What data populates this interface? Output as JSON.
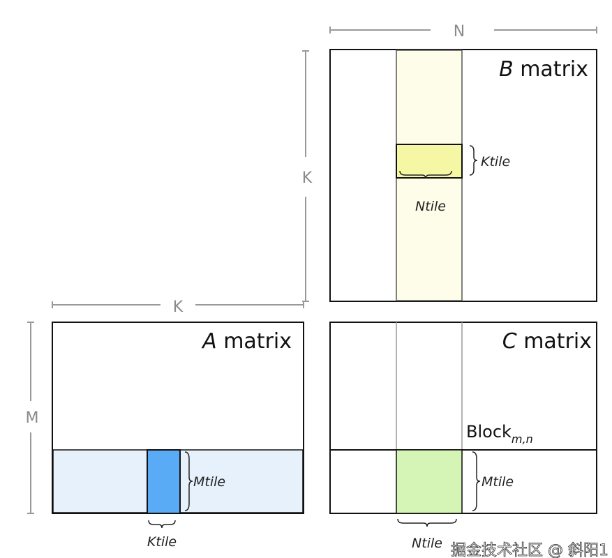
{
  "dimensions": {
    "n": "N",
    "k_vertical": "K",
    "k_horizontal": "K",
    "m": "M"
  },
  "b_matrix": {
    "italic": "B",
    "title": " matrix",
    "brace_right": "Ktile",
    "brace_bottom": "Ntile"
  },
  "a_matrix": {
    "italic": "A",
    "title": " matrix",
    "brace_right": "Mtile",
    "brace_bottom": "Ktile"
  },
  "c_matrix": {
    "italic": "C",
    "title": " matrix",
    "block_label": "Block",
    "block_subscript": "m,n",
    "brace_right": "Mtile",
    "brace_bottom": "Ntile"
  },
  "watermark": "掘金技术社区 @ 斜阳1",
  "colors": {
    "b_column": "#fefde9",
    "b_tile": "#f5f7a4",
    "a_row": "#e6f1fc",
    "a_tile": "#5aabf5",
    "c_tile": "#d4f5b5"
  }
}
